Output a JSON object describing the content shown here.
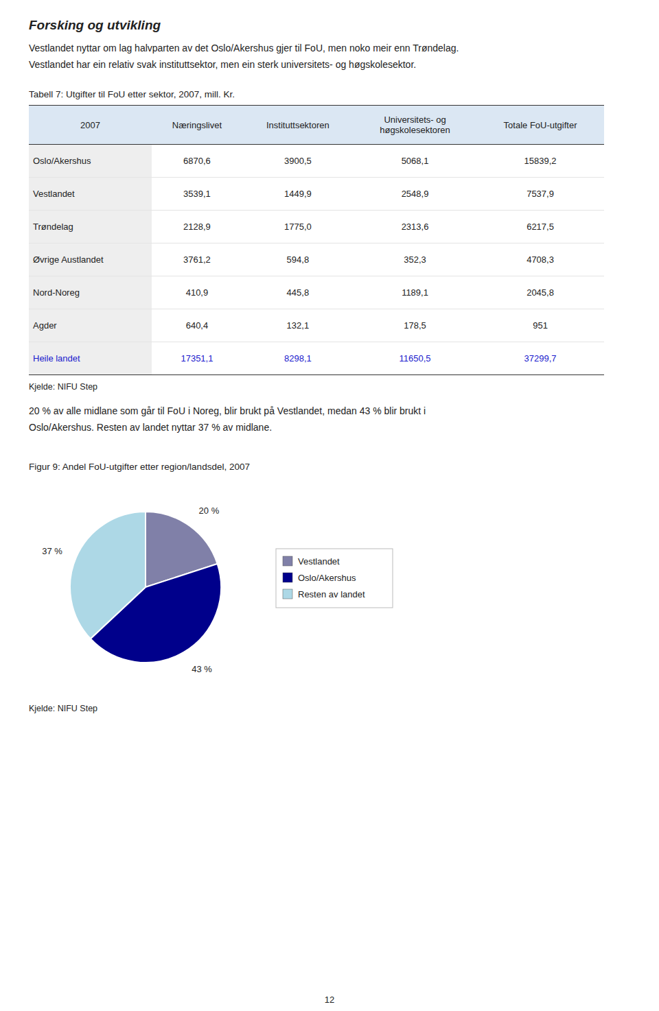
{
  "page": {
    "title": "Forsking og utvikling",
    "paragraphs": [
      "Vestlandet nyttar om lag halvparten av det Oslo/Akershus gjer til FoU, men noko meir enn Trøndelag.",
      "Vestlandet har ein relativ svak instituttsektor, men ein sterk universitets- og høgskolesektor."
    ],
    "paragraphs_after_table": [
      "20 % av alle midlane som går til FoU i Noreg, blir brukt på Vestlandet, medan 43 % blir brukt i",
      "Oslo/Akershus. Resten av landet nyttar 37 % av midlane."
    ],
    "page_number": "12"
  },
  "table": {
    "caption": "Tabell 7: Utgifter til FoU etter sektor, 2007, mill. Kr.",
    "headers": [
      "2007",
      "Næringslivet",
      "Instituttsektoren",
      "Universitets- og\nhøgskolesektoren",
      "Totale FoU-utgifter"
    ],
    "rows": [
      [
        "Oslo/Akershus",
        "6870,6",
        "3900,5",
        "5068,1",
        "15839,2"
      ],
      [
        "Vestlandet",
        "3539,1",
        "1449,9",
        "2548,9",
        "7537,9"
      ],
      [
        "Trøndelag",
        "2128,9",
        "1775,0",
        "2313,6",
        "6217,5"
      ],
      [
        "Øvrige Austlandet",
        "3761,2",
        "594,8",
        "352,3",
        "4708,3"
      ],
      [
        "Nord-Noreg",
        "410,9",
        "445,8",
        "1189,1",
        "2045,8"
      ],
      [
        "Agder",
        "640,4",
        "132,1",
        "178,5",
        "951"
      ]
    ],
    "total_row": [
      "Heile landet",
      "17351,1",
      "8298,1",
      "11650,5",
      "37299,7"
    ],
    "source": "Kjelde: NIFU Step"
  },
  "chart_data": {
    "type": "pie",
    "title": "Figur 9: Andel FoU-utgifter etter region/landsdel, 2007",
    "categories": [
      "Vestlandet",
      "Oslo/Akershus",
      "Resten av landet"
    ],
    "values": [
      20,
      43,
      37
    ],
    "value_labels": [
      "20 %",
      "43 %",
      "37 %"
    ],
    "colors": [
      "#8080a8",
      "#00008b",
      "#add8e6"
    ],
    "data_labels": true,
    "legend": "right",
    "source": "Kjelde: NIFU Step"
  }
}
